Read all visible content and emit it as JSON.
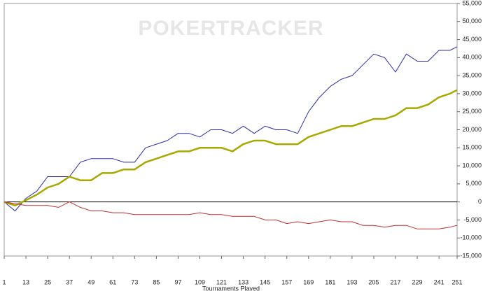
{
  "chart_data": {
    "type": "line",
    "watermark": "POKERTRACKER",
    "xlabel": "Tournaments Played",
    "x": [
      1,
      7,
      13,
      19,
      25,
      31,
      37,
      43,
      49,
      55,
      61,
      67,
      73,
      79,
      85,
      91,
      97,
      103,
      109,
      115,
      121,
      127,
      133,
      139,
      145,
      151,
      157,
      163,
      169,
      175,
      181,
      187,
      193,
      199,
      205,
      211,
      217,
      223,
      229,
      235,
      241,
      247,
      251
    ],
    "series": [
      {
        "color": "#2b2bb0",
        "width": 1,
        "values": [
          0,
          -2500,
          1000,
          3000,
          7000,
          7000,
          7000,
          11000,
          12000,
          12000,
          12000,
          11000,
          11000,
          15000,
          16000,
          17000,
          19000,
          19000,
          18000,
          20000,
          20000,
          19000,
          21000,
          19000,
          21000,
          20000,
          20000,
          19000,
          25000,
          29000,
          32000,
          34000,
          35000,
          38000,
          41000,
          40000,
          36000,
          41000,
          39000,
          39000,
          42000,
          42000,
          43000
        ]
      },
      {
        "color": "#a8a800",
        "width": 2.5,
        "values": [
          0,
          -1000,
          500,
          2000,
          4000,
          5000,
          7000,
          6000,
          6000,
          8000,
          8000,
          9000,
          9000,
          11000,
          12000,
          13000,
          14000,
          14000,
          15000,
          15000,
          15000,
          14000,
          16000,
          17000,
          17000,
          16000,
          16000,
          16000,
          18000,
          19000,
          20000,
          21000,
          21000,
          22000,
          23000,
          23000,
          24000,
          26000,
          26000,
          27000,
          29000,
          30000,
          31000
        ]
      },
      {
        "color": "#c03030",
        "width": 1,
        "values": [
          0,
          -500,
          -1000,
          -1000,
          -1000,
          -1500,
          0,
          -1500,
          -2500,
          -2500,
          -3000,
          -3000,
          -3500,
          -3500,
          -3500,
          -3500,
          -3500,
          -3500,
          -3000,
          -3500,
          -3500,
          -4000,
          -4000,
          -4000,
          -5000,
          -5000,
          -6000,
          -5500,
          -6000,
          -5500,
          -5000,
          -5500,
          -5500,
          -6500,
          -6500,
          -7000,
          -6500,
          -6500,
          -7500,
          -7500,
          -7500,
          -7000,
          -6500
        ]
      }
    ],
    "xlim": [
      1,
      251
    ],
    "xticks": [
      1,
      13,
      25,
      37,
      49,
      61,
      73,
      85,
      97,
      109,
      121,
      133,
      145,
      157,
      169,
      181,
      193,
      205,
      217,
      229,
      241,
      251
    ],
    "ylim": [
      -15000,
      55000
    ],
    "yticks": [
      {
        "value": -15000,
        "label": "-15,000"
      },
      {
        "value": -10000,
        "label": "-10,000"
      },
      {
        "value": -5000,
        "label": "-5,000"
      },
      0,
      {
        "value": 5000,
        "label": "5,000"
      },
      {
        "value": 10000,
        "label": "10,000"
      },
      {
        "value": 15000,
        "label": "15,000"
      },
      {
        "value": 20000,
        "label": "20,000"
      },
      {
        "value": 25000,
        "label": "25,000"
      },
      {
        "value": 30000,
        "label": "30,000"
      },
      {
        "value": 35000,
        "label": "35,000"
      },
      {
        "value": 40000,
        "label": "40,000"
      },
      {
        "value": 45000,
        "label": "45,000"
      },
      {
        "value": 50000,
        "label": "50,000"
      },
      {
        "value": 55000,
        "label": "55,000"
      }
    ]
  }
}
